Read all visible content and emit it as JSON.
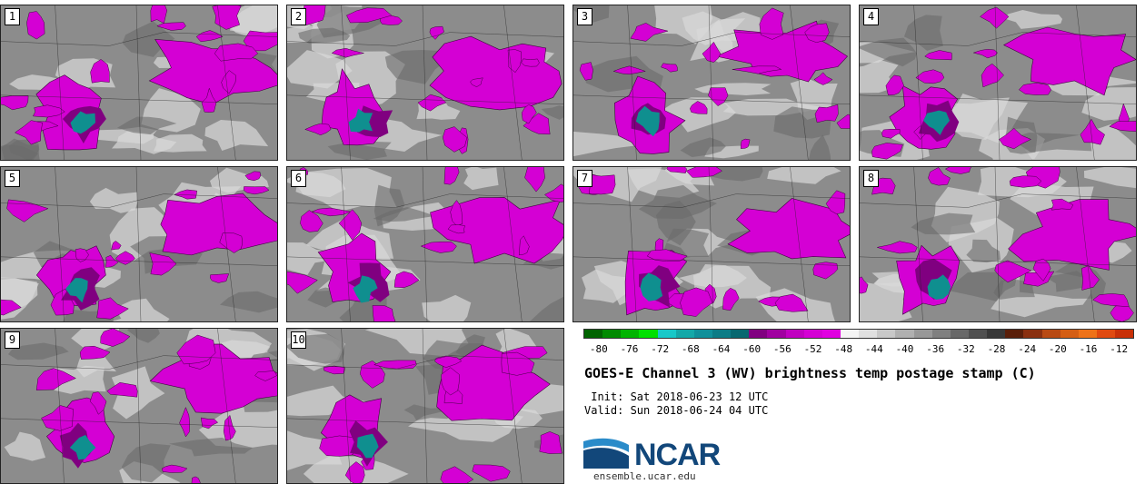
{
  "panels": [
    {
      "label": "1"
    },
    {
      "label": "2"
    },
    {
      "label": "3"
    },
    {
      "label": "4"
    },
    {
      "label": "5"
    },
    {
      "label": "6"
    },
    {
      "label": "7"
    },
    {
      "label": "8"
    },
    {
      "label": "9"
    },
    {
      "label": "10"
    }
  ],
  "colorbar": {
    "colors": [
      "#006400",
      "#008a00",
      "#00b400",
      "#00e000",
      "#18c8c8",
      "#14a8a8",
      "#10909a",
      "#0c7c86",
      "#086870",
      "#800080",
      "#a000a0",
      "#c000c0",
      "#d400d4",
      "#e000e0",
      "#f5f5f5",
      "#e0e0e0",
      "#c8c8c8",
      "#b0b0b0",
      "#989898",
      "#808080",
      "#686868",
      "#505050",
      "#383838",
      "#5a1f0a",
      "#8a3010",
      "#b84a14",
      "#d45e14",
      "#ee7218",
      "#e04a10",
      "#c83008"
    ],
    "tick_labels": [
      "-80",
      "-76",
      "-72",
      "-68",
      "-64",
      "-60",
      "-56",
      "-52",
      "-48",
      "-44",
      "-40",
      "-36",
      "-32",
      "-28",
      "-24",
      "-20",
      "-16",
      "-12"
    ]
  },
  "title": "GOES-E Channel 3 (WV) brightness temp postage stamp (C)",
  "init_text": " Init: Sat 2018-06-23 12 UTC",
  "valid_text": "Valid: Sun 2018-06-24 04 UTC",
  "logo": {
    "text": "NCAR",
    "url": "ensemble.ucar.edu",
    "color": "#12477a",
    "arc_color": "#2a8bc9"
  },
  "map_colors": {
    "background": "#8c8c8c",
    "light": "#d8d8d8",
    "magenta": "#d400d4",
    "dark_magenta": "#800080",
    "teal": "#0f8f8f"
  }
}
